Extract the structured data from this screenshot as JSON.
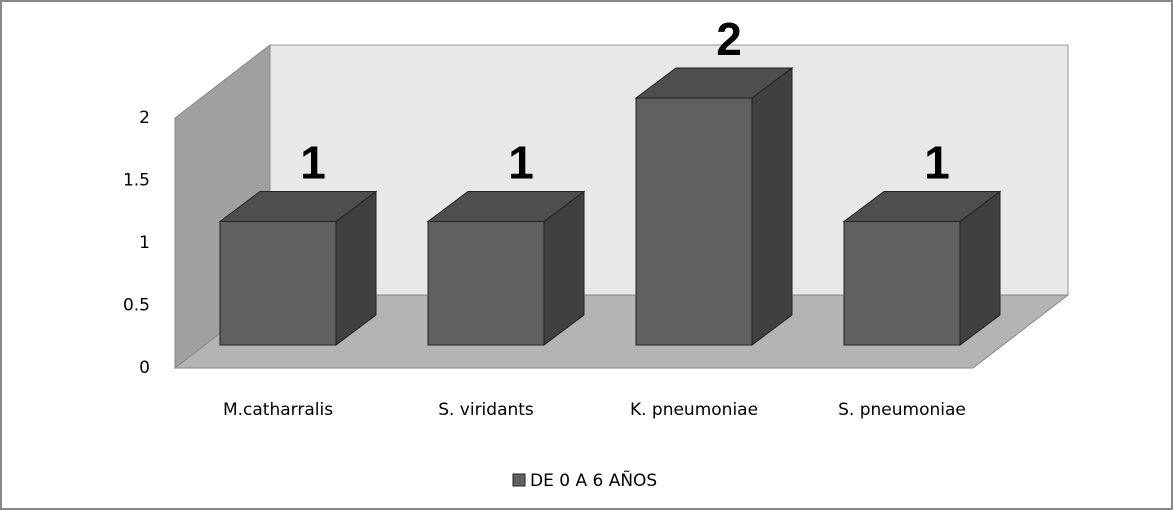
{
  "chart_data": {
    "type": "bar3d",
    "categories": [
      "M.catharralis",
      "S. viridants",
      "K. pneumoniae",
      "S. pneumoniae"
    ],
    "series": [
      {
        "name": "DE 0 A 6 AÑOS",
        "color": "#606060",
        "values": [
          1,
          1,
          2,
          1
        ]
      }
    ],
    "ylim": [
      0,
      2
    ],
    "yticks": [
      0,
      0.5,
      1,
      1.5,
      2
    ],
    "grid": false,
    "legend": "bottom"
  }
}
